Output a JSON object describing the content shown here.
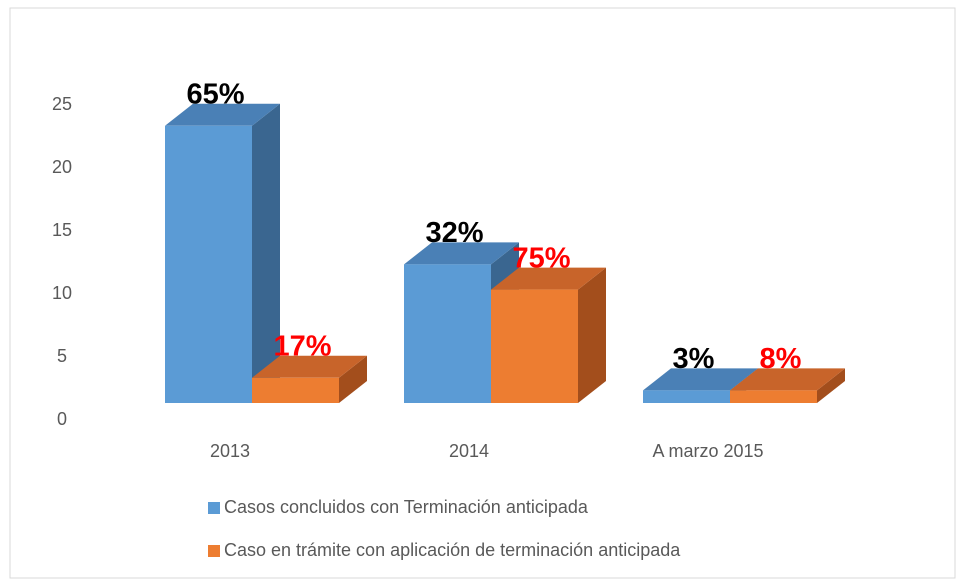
{
  "chart_data": {
    "type": "bar3d",
    "categories": [
      "2013",
      "2014",
      "A marzo 2015"
    ],
    "ylim": [
      0,
      25
    ],
    "yticks": [
      0,
      5,
      10,
      15,
      20,
      25
    ],
    "series": [
      {
        "name": "Casos concluidos con Terminación anticipada",
        "color": "#5b9bd5",
        "top_color": "#4a80b6",
        "side_color": "#3a6690",
        "label_color": "#000000",
        "values": [
          22,
          11,
          1
        ],
        "annotations": [
          "65%",
          "32%",
          "3%"
        ]
      },
      {
        "name": "Caso en trámite con aplicación de terminación anticipada",
        "color": "#ed7d31",
        "top_color": "#c8642a",
        "side_color": "#a34e1c",
        "label_color": "#ff0000",
        "values": [
          2,
          9,
          1
        ],
        "annotations": [
          "17%",
          "75%",
          "8%"
        ]
      }
    ],
    "legend": "bottom"
  }
}
